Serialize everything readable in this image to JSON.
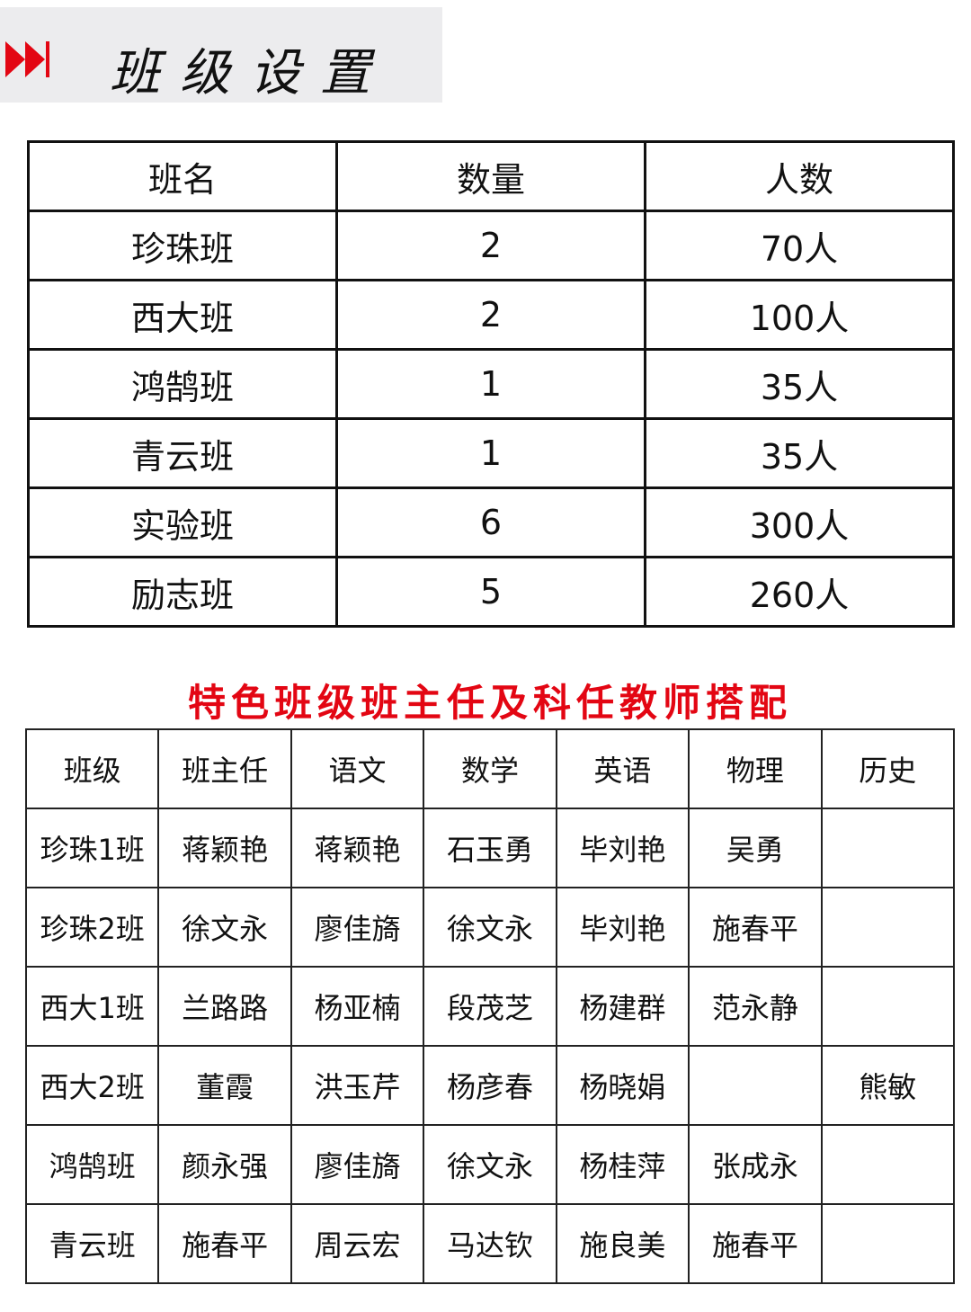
{
  "banner": {
    "title": "班级设置",
    "icon": "fast-forward-icon",
    "accent": "#e30613"
  },
  "class_table": {
    "headers": [
      "班名",
      "数量",
      "人数"
    ],
    "rows": [
      [
        "珍珠班",
        "2",
        "70人"
      ],
      [
        "西大班",
        "2",
        "100人"
      ],
      [
        "鸿鹄班",
        "1",
        "35人"
      ],
      [
        "青云班",
        "1",
        "35人"
      ],
      [
        "实验班",
        "6",
        "300人"
      ],
      [
        "励志班",
        "5",
        "260人"
      ]
    ]
  },
  "teacher_section": {
    "title": "特色班级班主任及科任教师搭配",
    "title_color": "#e30613",
    "headers": [
      "班级",
      "班主任",
      "语文",
      "数学",
      "英语",
      "物理",
      "历史"
    ],
    "rows": [
      [
        "珍珠1班",
        "蒋颖艳",
        "蒋颖艳",
        "石玉勇",
        "毕刘艳",
        "吴勇",
        ""
      ],
      [
        "珍珠2班",
        "徐文永",
        "廖佳旖",
        "徐文永",
        "毕刘艳",
        "施春平",
        ""
      ],
      [
        "西大1班",
        "兰路路",
        "杨亚楠",
        "段茂芝",
        "杨建群",
        "范永静",
        ""
      ],
      [
        "西大2班",
        "董霞",
        "洪玉芹",
        "杨彦春",
        "杨晓娟",
        "",
        "熊敏"
      ],
      [
        "鸿鹄班",
        "颜永强",
        "廖佳旖",
        "徐文永",
        "杨桂萍",
        "张成永",
        ""
      ],
      [
        "青云班",
        "施春平",
        "周云宏",
        "马达钦",
        "施良美",
        "施春平",
        ""
      ]
    ]
  }
}
